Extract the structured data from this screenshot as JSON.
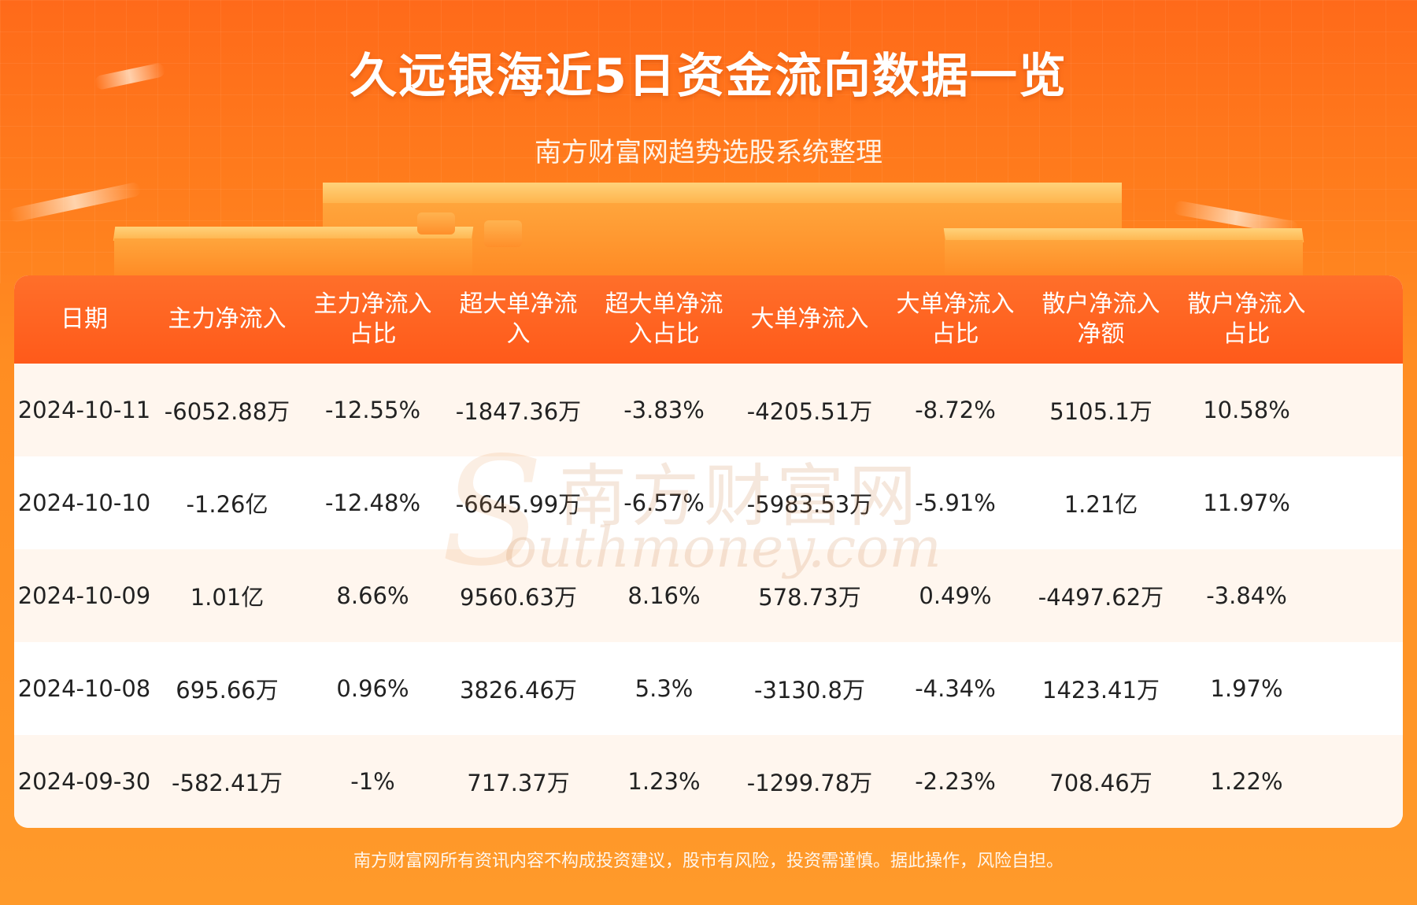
{
  "header": {
    "title": "久远银海近5日资金流向数据一览",
    "subtitle": "南方财富网趋势选股系统整理"
  },
  "table": {
    "columns": [
      "日期",
      "主力净流入",
      "主力净流入\n占比",
      "超大单净流\n入",
      "超大单净流\n入占比",
      "大单净流入",
      "大单净流入\n占比",
      "散户净流入\n净额",
      "散户净流入\n占比"
    ],
    "rows": [
      [
        "2024-10-11",
        "-6052.88万",
        "-12.55%",
        "-1847.36万",
        "-3.83%",
        "-4205.51万",
        "-8.72%",
        "5105.1万",
        "10.58%"
      ],
      [
        "2024-10-10",
        "-1.26亿",
        "-12.48%",
        "-6645.99万",
        "-6.57%",
        "-5983.53万",
        "-5.91%",
        "1.21亿",
        "11.97%"
      ],
      [
        "2024-10-09",
        "1.01亿",
        "8.66%",
        "9560.63万",
        "8.16%",
        "578.73万",
        "0.49%",
        "-4497.62万",
        "-3.84%"
      ],
      [
        "2024-10-08",
        "695.66万",
        "0.96%",
        "3826.46万",
        "5.3%",
        "-3130.8万",
        "-4.34%",
        "1423.41万",
        "1.97%"
      ],
      [
        "2024-09-30",
        "-582.41万",
        "-1%",
        "717.37万",
        "1.23%",
        "-1299.78万",
        "-2.23%",
        "708.46万",
        "1.22%"
      ]
    ]
  },
  "watermark": {
    "cn": "南方财富网",
    "en": "outhmoney.com",
    "s": "S"
  },
  "footer": {
    "disclaimer": "南方财富网所有资讯内容不构成投资建议，股市有风险，投资需谨慎。据此操作，风险自担。"
  },
  "colors": {
    "header_bg": "#ff5a1a",
    "page_bg": "#ff8d22",
    "row_alt": "#fff6ee"
  }
}
